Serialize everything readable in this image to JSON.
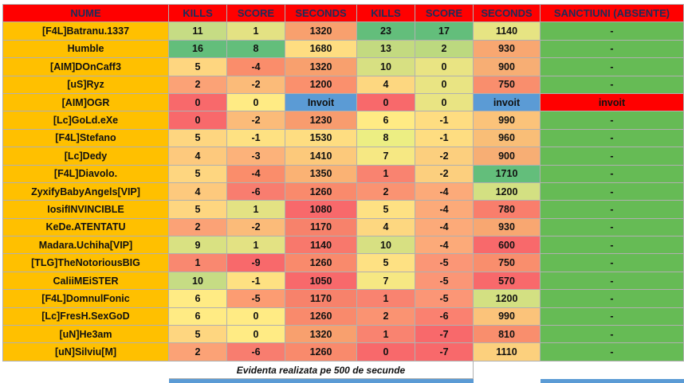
{
  "headers": [
    "NUME",
    "KILLS",
    "SCORE",
    "SECONDS",
    "KILLS",
    "SCORE",
    "SECONDS",
    "SANCTIUNI (ABSENTE)"
  ],
  "rows": [
    {
      "name": "[F4L]Batranu.1337",
      "k1": "11",
      "s1": "1",
      "sec1": "1320",
      "k2": "23",
      "s2": "17",
      "sec2": "1140",
      "sanc": "-"
    },
    {
      "name": "Humble",
      "k1": "16",
      "s1": "8",
      "sec1": "1680",
      "k2": "13",
      "s2": "2",
      "sec2": "930",
      "sanc": "-"
    },
    {
      "name": "[AIM]DOnCaff3",
      "k1": "5",
      "s1": "-4",
      "sec1": "1320",
      "k2": "10",
      "s2": "0",
      "sec2": "900",
      "sanc": "-"
    },
    {
      "name": "[uS]Ryz",
      "k1": "2",
      "s1": "-2",
      "sec1": "1200",
      "k2": "4",
      "s2": "0",
      "sec2": "750",
      "sanc": "-"
    },
    {
      "name": "[AIM]OGR",
      "k1": "0",
      "s1": "0",
      "sec1": "Invoit",
      "k2": "0",
      "s2": "0",
      "sec2": "invoit",
      "sanc": "invoit"
    },
    {
      "name": "[Lc]GoLd.eXe",
      "k1": "0",
      "s1": "-2",
      "sec1": "1230",
      "k2": "6",
      "s2": "-1",
      "sec2": "990",
      "sanc": "-"
    },
    {
      "name": "[F4L]Stefano",
      "k1": "5",
      "s1": "-1",
      "sec1": "1530",
      "k2": "8",
      "s2": "-1",
      "sec2": "960",
      "sanc": "-"
    },
    {
      "name": "[Lc]Dedy",
      "k1": "4",
      "s1": "-3",
      "sec1": "1410",
      "k2": "7",
      "s2": "-2",
      "sec2": "900",
      "sanc": "-"
    },
    {
      "name": "[F4L]Diavolo.",
      "k1": "5",
      "s1": "-4",
      "sec1": "1350",
      "k2": "1",
      "s2": "-2",
      "sec2": "1710",
      "sanc": "-"
    },
    {
      "name": "ZyxifyBabyAngels[VIP]",
      "k1": "4",
      "s1": "-6",
      "sec1": "1260",
      "k2": "2",
      "s2": "-4",
      "sec2": "1200",
      "sanc": "-"
    },
    {
      "name": "IosifINVINCIBLE",
      "k1": "5",
      "s1": "1",
      "sec1": "1080",
      "k2": "5",
      "s2": "-4",
      "sec2": "780",
      "sanc": "-"
    },
    {
      "name": "KeDe.ATENTATU",
      "k1": "2",
      "s1": "-2",
      "sec1": "1170",
      "k2": "4",
      "s2": "-4",
      "sec2": "930",
      "sanc": "-"
    },
    {
      "name": "Madara.Uchiha[VIP]",
      "k1": "9",
      "s1": "1",
      "sec1": "1140",
      "k2": "10",
      "s2": "-4",
      "sec2": "600",
      "sanc": "-"
    },
    {
      "name": "[TLG]TheNotoriousBIG",
      "k1": "1",
      "s1": "-9",
      "sec1": "1260",
      "k2": "5",
      "s2": "-5",
      "sec2": "750",
      "sanc": "-"
    },
    {
      "name": "CaliiMEiSTER",
      "k1": "10",
      "s1": "-1",
      "sec1": "1050",
      "k2": "7",
      "s2": "-5",
      "sec2": "570",
      "sanc": "-"
    },
    {
      "name": "[F4L]DomnulFonic",
      "k1": "6",
      "s1": "-5",
      "sec1": "1170",
      "k2": "1",
      "s2": "-5",
      "sec2": "1200",
      "sanc": "-"
    },
    {
      "name": "[Lc]FresH.SexGoD",
      "k1": "6",
      "s1": "0",
      "sec1": "1260",
      "k2": "2",
      "s2": "-6",
      "sec2": "990",
      "sanc": "-"
    },
    {
      "name": "[uN]He3am",
      "k1": "5",
      "s1": "0",
      "sec1": "1320",
      "k2": "1",
      "s2": "-7",
      "sec2": "810",
      "sanc": "-"
    },
    {
      "name": "[uN]Silviu[M]",
      "k1": "2",
      "s1": "-6",
      "sec1": "1260",
      "k2": "0",
      "s2": "-7",
      "sec2": "1110",
      "sanc": "-"
    }
  ],
  "cell_colors": [
    [
      "#c6dc84",
      "#e3e283",
      "#f8a06e",
      "#63be7b",
      "#63be7b",
      "#e6e483",
      "#66bb55"
    ],
    [
      "#63be7b",
      "#63be7b",
      "#fedd81",
      "#c3da80",
      "#bcd97f",
      "#f8a771",
      "#66bb55"
    ],
    [
      "#fed680",
      "#fa8d6b",
      "#f8a06e",
      "#d7e082",
      "#e9e483",
      "#f7ae74",
      "#66bb55"
    ],
    [
      "#fba276",
      "#fbbb79",
      "#fa906d",
      "#fdd780",
      "#e9e483",
      "#f98e6d",
      "#66bb55"
    ],
    [
      "#f8696b",
      "#ffeb84",
      "#5b9bd5",
      "#f8696b",
      "#e9e483",
      "#5b9bd5",
      "#ff0000"
    ],
    [
      "#f8696b",
      "#fbbb79",
      "#f89c6e",
      "#ffeb84",
      "#fedd81",
      "#fbc37a",
      "#66bb55"
    ],
    [
      "#fed680",
      "#fee182",
      "#fedd81",
      "#ecee83",
      "#fedd81",
      "#f9be77",
      "#66bb55"
    ],
    [
      "#fdc97d",
      "#fcb27a",
      "#fcc97b",
      "#f6e883",
      "#fccf7e",
      "#f7ae74",
      "#66bb55"
    ],
    [
      "#fed680",
      "#fa8d6b",
      "#fab274",
      "#f98370",
      "#fccf7e",
      "#63be7b",
      "#66bb55"
    ],
    [
      "#fdc97d",
      "#f87d6f",
      "#f98a6c",
      "#fa9372",
      "#fcaa79",
      "#d3e082",
      "#66bb55"
    ],
    [
      "#fed680",
      "#e3e283",
      "#f8696b",
      "#fee183",
      "#fcaa79",
      "#f97e6c",
      "#66bb55"
    ],
    [
      "#fba276",
      "#fbbb79",
      "#f7826b",
      "#fdd780",
      "#fcaa79",
      "#f8a771",
      "#66bb55"
    ],
    [
      "#d9e182",
      "#e3e283",
      "#f8786c",
      "#d7e082",
      "#fcaa79",
      "#f8696b",
      "#66bb55"
    ],
    [
      "#f98870",
      "#f8696b",
      "#f98a6c",
      "#fee183",
      "#fb9676",
      "#f98e6d",
      "#66bb55"
    ],
    [
      "#c6dc84",
      "#fee182",
      "#f8696b",
      "#f6e883",
      "#fb9676",
      "#f8696b",
      "#66bb55"
    ],
    [
      "#ffeb84",
      "#fc9c72",
      "#f7826b",
      "#f98370",
      "#fb9676",
      "#d3e082",
      "#66bb55"
    ],
    [
      "#ffeb84",
      "#ffeb84",
      "#f98a6c",
      "#fa9372",
      "#fa8170",
      "#fbc37a",
      "#66bb55"
    ],
    [
      "#fed680",
      "#ffeb84",
      "#f8a06e",
      "#f98370",
      "#f8696b",
      "#f98e6d",
      "#66bb55"
    ],
    [
      "#fba276",
      "#f87d6f",
      "#f98a6c",
      "#f8696b",
      "#f8696b",
      "#fcd07d",
      "#66bb55"
    ]
  ],
  "footnote": "Evidenta realizata pe 500 de secunde",
  "colors": {
    "header_bg": "#ff0000",
    "header_text": "#1c2d5a",
    "name_bg": "#ffc000",
    "sanc_bg": "#66bb55",
    "invoit_blue": "#5b9bd5",
    "footer_blue": "#5b9bd5"
  }
}
